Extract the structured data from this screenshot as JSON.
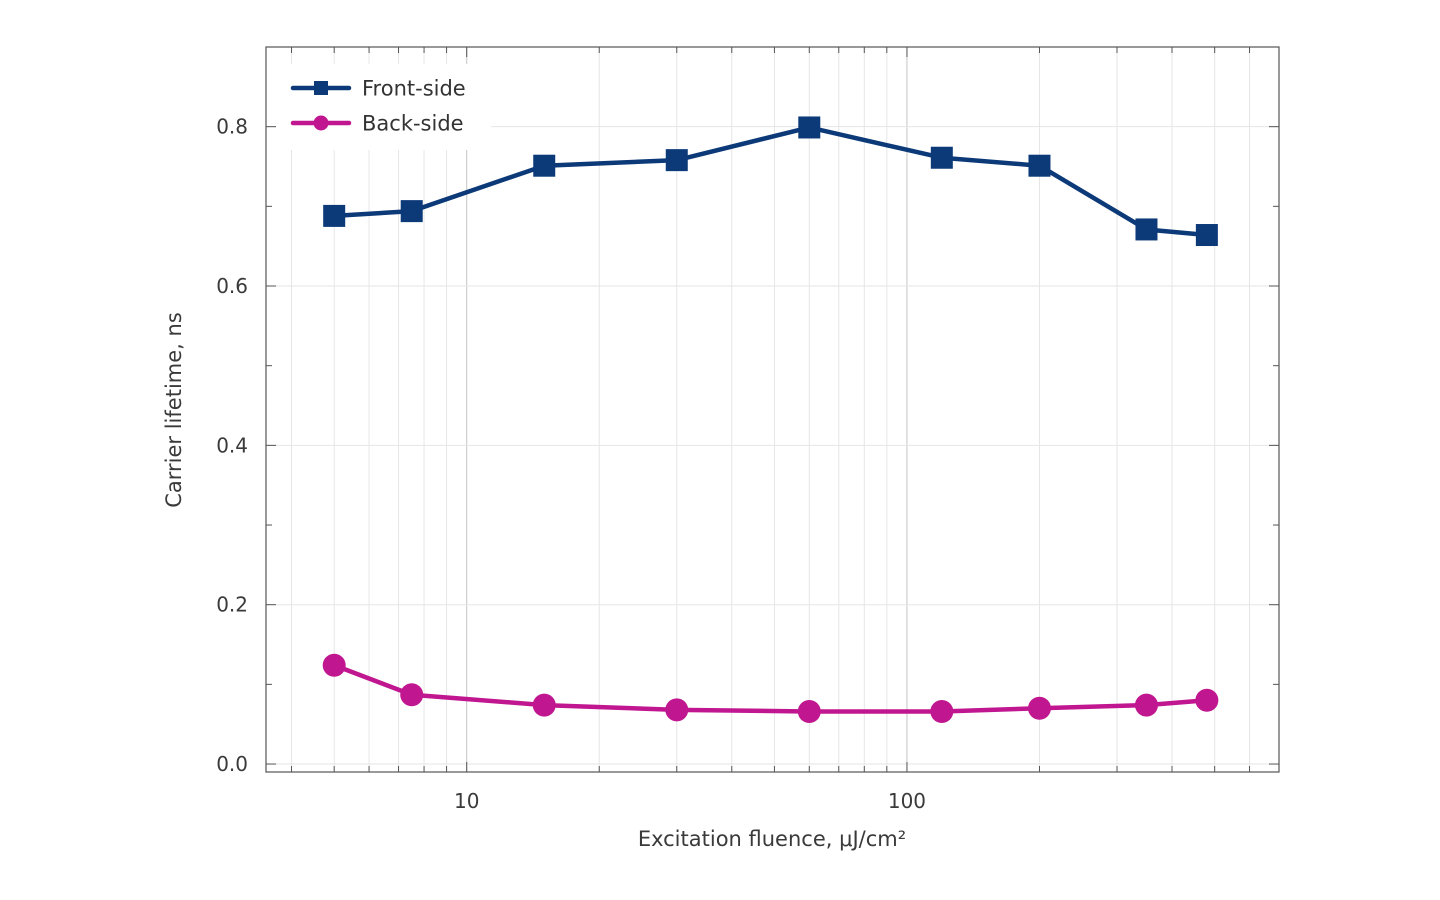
{
  "chart_data": {
    "type": "line",
    "xscale": "log",
    "xlim": [
      3.5,
      700
    ],
    "ylim": [
      -0.01,
      0.9
    ],
    "xticks": [
      10,
      100
    ],
    "xtick_labels": [
      "10",
      "100"
    ],
    "yticks": [
      0.0,
      0.2,
      0.4,
      0.6,
      0.8
    ],
    "ytick_labels": [
      "0.0",
      "0.2",
      "0.4",
      "0.6",
      "0.8"
    ],
    "xlabel": "Excitation fluence, μJ/cm²",
    "ylabel": "Carrier lifetime, ns",
    "grid": true,
    "legend_position": "top-left",
    "series": [
      {
        "name": "Front-side",
        "color": "#0c3a78",
        "marker": "square",
        "x": [
          5,
          7.5,
          15,
          30,
          60,
          120,
          200,
          350,
          480
        ],
        "y": [
          0.688,
          0.694,
          0.751,
          0.758,
          0.799,
          0.761,
          0.751,
          0.671,
          0.664
        ]
      },
      {
        "name": "Back-side",
        "color": "#c0168f",
        "marker": "circle",
        "x": [
          5,
          7.5,
          15,
          30,
          60,
          120,
          200,
          350,
          480
        ],
        "y": [
          0.124,
          0.087,
          0.074,
          0.068,
          0.066,
          0.066,
          0.07,
          0.074,
          0.08
        ]
      }
    ]
  }
}
